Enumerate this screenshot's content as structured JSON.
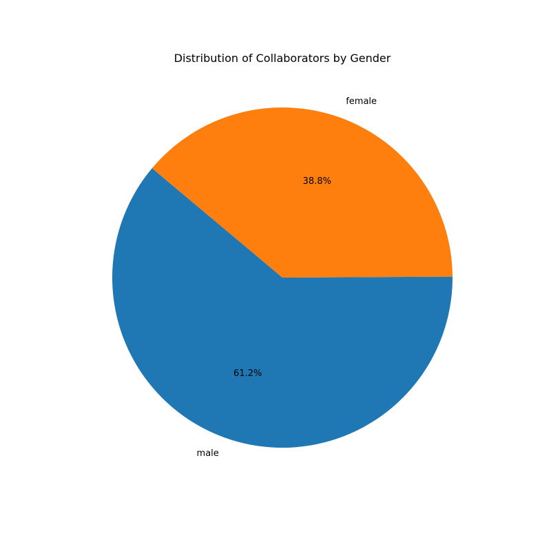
{
  "chart_data": {
    "type": "pie",
    "title": "Distribution of Collaborators by Gender",
    "categories": [
      "male",
      "female"
    ],
    "values": [
      61.2,
      38.8
    ],
    "value_labels": [
      "61.2%",
      "38.8%"
    ],
    "colors": [
      "#1f77b4",
      "#ff7f0e"
    ],
    "start_angle_deg": 140,
    "direction": "counterclockwise",
    "legend": "none"
  }
}
